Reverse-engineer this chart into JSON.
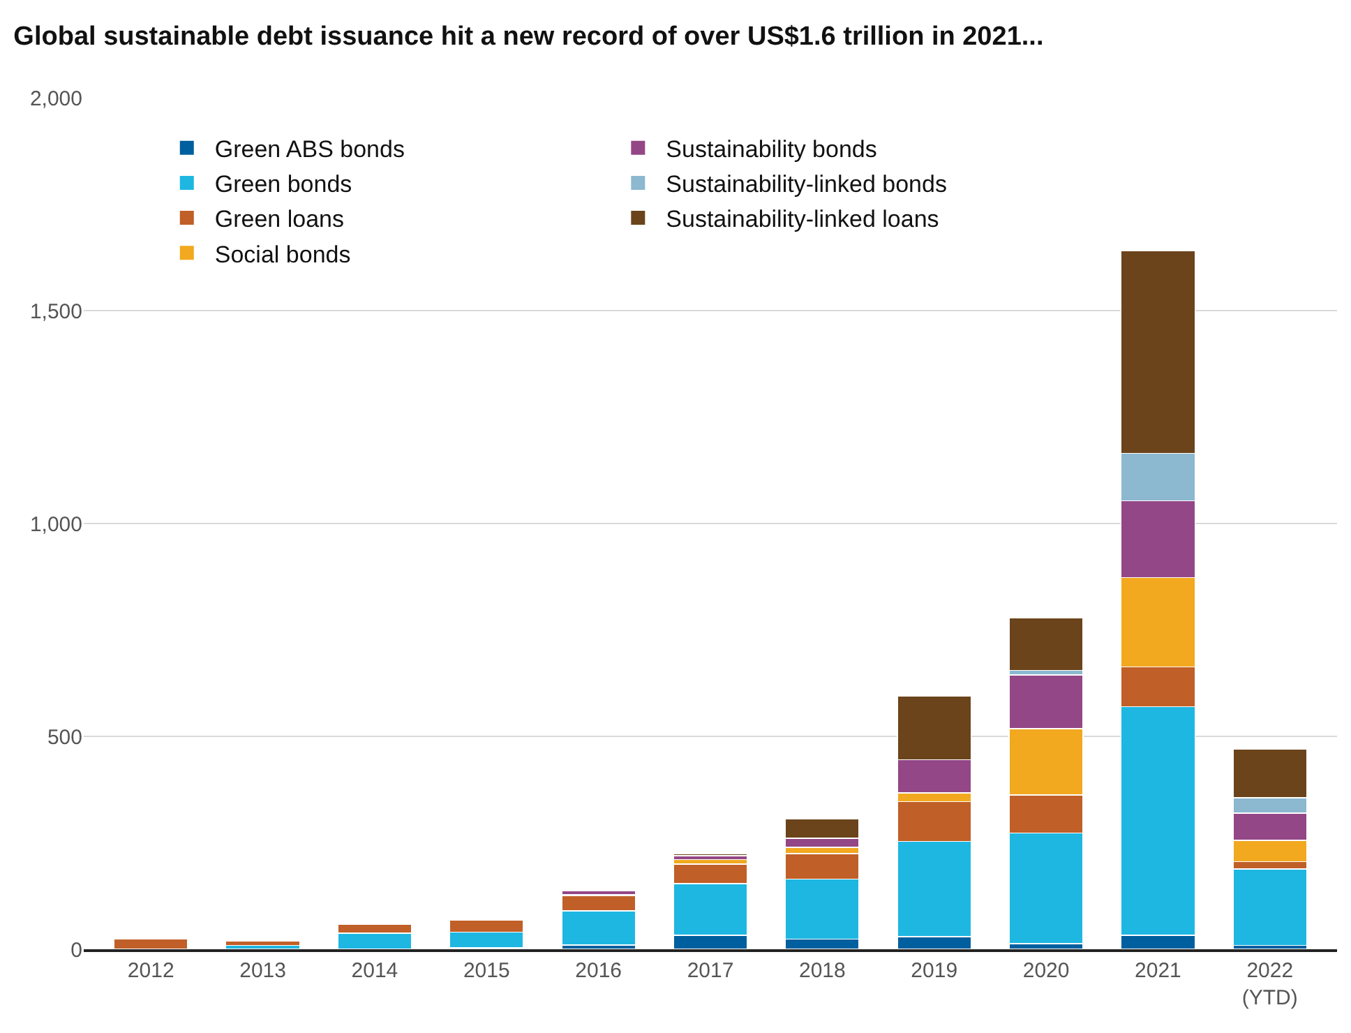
{
  "chart_data": {
    "type": "bar",
    "stacked": true,
    "title": "Global sustainable debt issuance hit a new record of over US$1.6 trillion in 2021...",
    "categories": [
      "2012",
      "2013",
      "2014",
      "2015",
      "2016",
      "2017",
      "2018",
      "2019",
      "2020",
      "2021",
      "2022\n(YTD)"
    ],
    "series": [
      {
        "name": "Green ABS bonds",
        "color": "#005f9e",
        "values": [
          null,
          null,
          null,
          3,
          10,
          33,
          24,
          30,
          13,
          33,
          9
        ]
      },
      {
        "name": "Green bonds",
        "color": "#1eb7e2",
        "values": [
          null,
          9,
          38,
          37,
          80,
          121,
          141,
          223,
          260,
          537,
          180
        ]
      },
      {
        "name": "Green loans",
        "color": "#c05f27",
        "values": [
          25,
          10,
          21,
          28,
          36,
          46,
          60,
          94,
          89,
          93,
          17
        ]
      },
      {
        "name": "Social bonds",
        "color": "#f2a81f",
        "values": [
          null,
          null,
          null,
          null,
          3,
          11,
          14,
          20,
          156,
          210,
          50
        ]
      },
      {
        "name": "Sustainability bonds",
        "color": "#934786",
        "values": [
          null,
          null,
          null,
          null,
          8,
          9,
          22,
          78,
          126,
          180,
          64
        ]
      },
      {
        "name": "Sustainability-linked bonds",
        "color": "#8cb8d0",
        "values": [
          null,
          null,
          null,
          null,
          null,
          null,
          null,
          null,
          11,
          112,
          36
        ]
      },
      {
        "name": "Sustainability-linked loans",
        "color": "#6b441b",
        "values": [
          null,
          null,
          null,
          null,
          null,
          5,
          46,
          150,
          123,
          476,
          115
        ]
      }
    ],
    "ylim": [
      0,
      2000
    ],
    "yticks": [
      0,
      500,
      {
        "value": 1000,
        "label": "1,000"
      },
      {
        "value": 1500,
        "label": "1,500"
      },
      {
        "value": 2000,
        "label": "2,000"
      }
    ],
    "grid": "y",
    "legend": "top left"
  }
}
